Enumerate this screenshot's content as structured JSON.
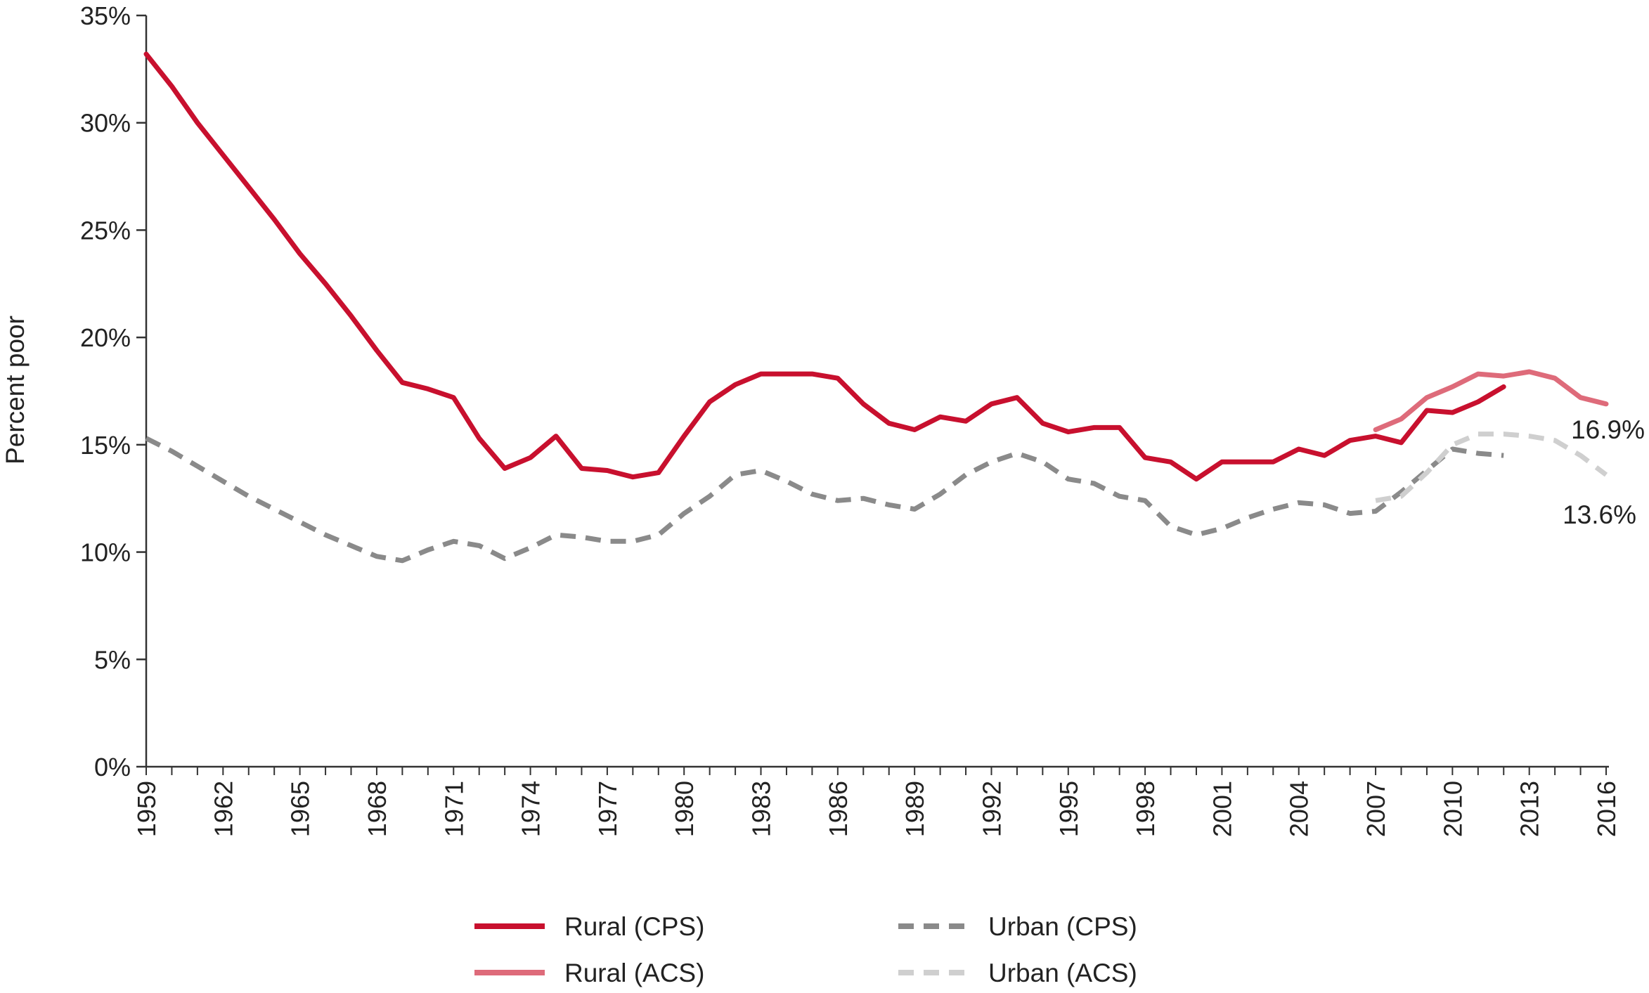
{
  "chart_data": {
    "type": "line",
    "title": "",
    "xlabel": "",
    "ylabel": "Percent poor",
    "ylim": [
      0,
      35
    ],
    "yticks": [
      0,
      5,
      10,
      15,
      20,
      25,
      30,
      35
    ],
    "ytick_labels": [
      "0%",
      "5%",
      "10%",
      "15%",
      "20%",
      "25%",
      "30%",
      "35%"
    ],
    "xlim": [
      1959,
      2016
    ],
    "xticks": [
      1959,
      1962,
      1965,
      1968,
      1971,
      1974,
      1977,
      1980,
      1983,
      1986,
      1989,
      1992,
      1995,
      1998,
      2001,
      2004,
      2007,
      2010,
      2013,
      2016
    ],
    "grid": false,
    "legend_position": "bottom",
    "series": [
      {
        "name": "Rural (CPS)",
        "color": "#c8102e",
        "style": "solid",
        "x": [
          1959,
          1960,
          1961,
          1962,
          1963,
          1964,
          1965,
          1966,
          1967,
          1968,
          1969,
          1970,
          1971,
          1972,
          1973,
          1974,
          1975,
          1976,
          1977,
          1978,
          1979,
          1980,
          1981,
          1982,
          1983,
          1984,
          1985,
          1986,
          1987,
          1988,
          1989,
          1990,
          1991,
          1992,
          1993,
          1994,
          1995,
          1996,
          1997,
          1998,
          1999,
          2000,
          2001,
          2002,
          2003,
          2004,
          2005,
          2006,
          2007,
          2008,
          2009,
          2010,
          2011,
          2012
        ],
        "y": [
          33.2,
          31.7,
          30.0,
          28.5,
          27.0,
          25.5,
          23.9,
          22.5,
          21.0,
          19.4,
          17.9,
          17.6,
          17.2,
          15.3,
          13.9,
          14.4,
          15.4,
          13.9,
          13.8,
          13.5,
          13.7,
          15.4,
          17.0,
          17.8,
          18.3,
          18.3,
          18.3,
          18.1,
          16.9,
          16.0,
          15.7,
          16.3,
          16.1,
          16.9,
          17.2,
          16.0,
          15.6,
          15.8,
          15.8,
          14.4,
          14.2,
          13.4,
          14.2,
          14.2,
          14.2,
          14.8,
          14.5,
          15.2,
          15.4,
          15.1,
          16.6,
          16.5,
          17.0,
          17.7
        ]
      },
      {
        "name": "Rural (ACS)",
        "color": "#de6b7a",
        "style": "solid",
        "x": [
          2007,
          2008,
          2009,
          2010,
          2011,
          2012,
          2013,
          2014,
          2015,
          2016
        ],
        "y": [
          15.7,
          16.2,
          17.2,
          17.7,
          18.3,
          18.2,
          18.4,
          18.1,
          17.2,
          16.9
        ]
      },
      {
        "name": "Urban (CPS)",
        "color": "#8a8a8a",
        "style": "dashed",
        "x": [
          1959,
          1960,
          1961,
          1962,
          1963,
          1964,
          1965,
          1966,
          1967,
          1968,
          1969,
          1970,
          1971,
          1972,
          1973,
          1974,
          1975,
          1976,
          1977,
          1978,
          1979,
          1980,
          1981,
          1982,
          1983,
          1984,
          1985,
          1986,
          1987,
          1988,
          1989,
          1990,
          1991,
          1992,
          1993,
          1994,
          1995,
          1996,
          1997,
          1998,
          1999,
          2000,
          2001,
          2002,
          2003,
          2004,
          2005,
          2006,
          2007,
          2008,
          2009,
          2010,
          2011,
          2012
        ],
        "y": [
          15.3,
          14.7,
          14.0,
          13.3,
          12.6,
          12.0,
          11.4,
          10.8,
          10.3,
          9.8,
          9.6,
          10.1,
          10.5,
          10.3,
          9.7,
          10.2,
          10.8,
          10.7,
          10.5,
          10.5,
          10.8,
          11.8,
          12.6,
          13.6,
          13.8,
          13.3,
          12.7,
          12.4,
          12.5,
          12.2,
          12.0,
          12.7,
          13.6,
          14.2,
          14.6,
          14.2,
          13.4,
          13.2,
          12.6,
          12.4,
          11.2,
          10.8,
          11.1,
          11.6,
          12.0,
          12.3,
          12.2,
          11.8,
          11.9,
          12.8,
          13.8,
          14.8,
          14.6,
          14.5
        ]
      },
      {
        "name": "Urban (ACS)",
        "color": "#cfcfcf",
        "style": "dashed",
        "x": [
          2007,
          2008,
          2009,
          2010,
          2011,
          2012,
          2013,
          2014,
          2015,
          2016
        ],
        "y": [
          12.4,
          12.6,
          13.7,
          15.0,
          15.5,
          15.5,
          15.4,
          15.2,
          14.5,
          13.6
        ]
      }
    ],
    "annotations": [
      "16.9%",
      "13.6%"
    ]
  }
}
